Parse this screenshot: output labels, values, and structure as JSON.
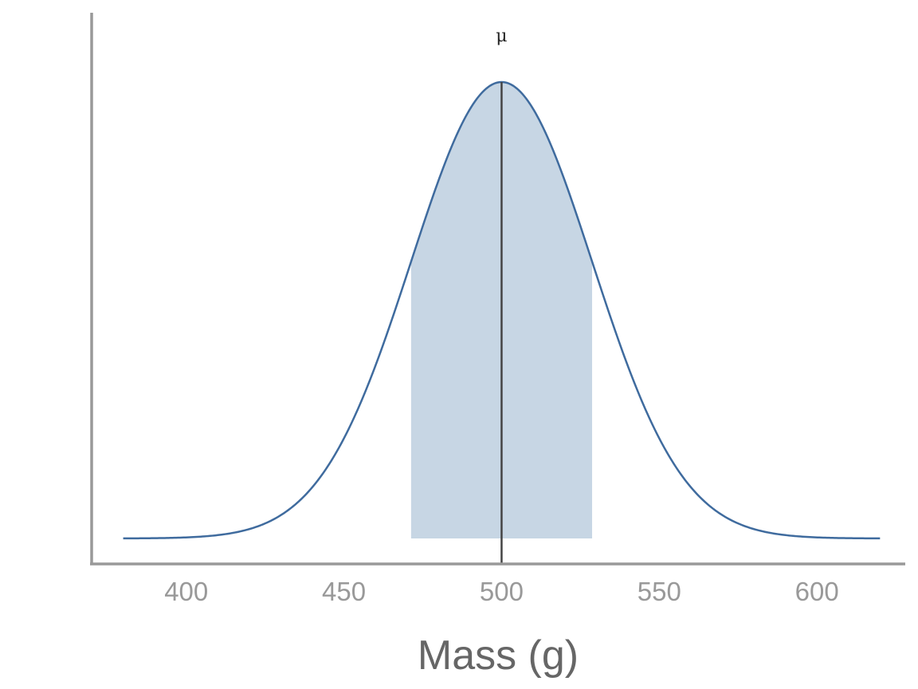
{
  "chart_data": {
    "type": "line",
    "distribution": "normal",
    "mean": 500,
    "sd": 28.7,
    "x_range": [
      380,
      620
    ],
    "xlim": [
      370,
      628
    ],
    "x_ticks": [
      400,
      450,
      500,
      550,
      600
    ],
    "xlabel": "Mass (g)",
    "ylabel": "",
    "y_axis_labels_shown": false,
    "shaded_interval": [
      471.3,
      528.7
    ],
    "mean_line_label": "μ",
    "colors": {
      "curve": "#3f6b9e",
      "shade": "#c7d6e4",
      "mean_line": "#444444",
      "axis": "#999999"
    }
  }
}
